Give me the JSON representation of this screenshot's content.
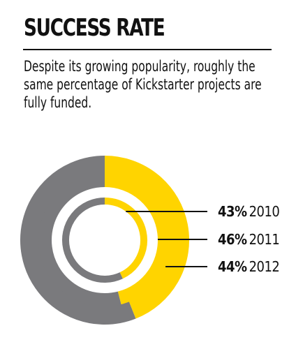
{
  "header": {
    "title": "SUCCESS RATE",
    "subtitle": "Despite its growing popularity, roughly the same percentage of Kickstarter projects are fully funded."
  },
  "colors": {
    "funded": "#ffd400",
    "unfunded": "#7a7a7d",
    "text": "#111111"
  },
  "chart_data": {
    "type": "pie",
    "variant": "concentric-rings",
    "title": "SUCCESS RATE",
    "series": [
      {
        "year": "2010",
        "value": 43,
        "label": "43%"
      },
      {
        "year": "2011",
        "value": 46,
        "label": "46%"
      },
      {
        "year": "2012",
        "value": 44,
        "label": "44%"
      }
    ],
    "unit": "%",
    "legend": "right"
  }
}
